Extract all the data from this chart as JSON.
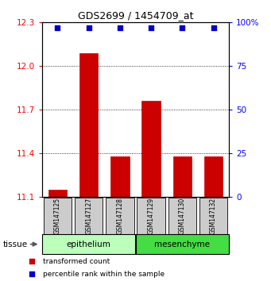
{
  "title": "GDS2699 / 1454709_at",
  "samples": [
    "GSM147125",
    "GSM147127",
    "GSM147128",
    "GSM147129",
    "GSM147130",
    "GSM147132"
  ],
  "bar_values": [
    11.15,
    12.09,
    11.38,
    11.76,
    11.38,
    11.38
  ],
  "bar_bottom": 11.1,
  "bar_color": "#cc0000",
  "percentile_values": [
    97,
    97,
    97,
    97,
    97,
    97
  ],
  "dot_color": "#0000cc",
  "ylim_left": [
    11.1,
    12.3
  ],
  "ylim_right": [
    0,
    100
  ],
  "yticks_left": [
    11.1,
    11.4,
    11.7,
    12.0,
    12.3
  ],
  "yticks_right": [
    0,
    25,
    50,
    75,
    100
  ],
  "ytick_labels_right": [
    "0",
    "25",
    "50",
    "75",
    "100%"
  ],
  "groups": [
    {
      "label": "epithelium",
      "indices": [
        0,
        1,
        2
      ],
      "color": "#bbffbb"
    },
    {
      "label": "mesenchyme",
      "indices": [
        3,
        4,
        5
      ],
      "color": "#44dd44"
    }
  ],
  "tissue_label": "tissue",
  "legend_entries": [
    {
      "label": "transformed count",
      "color": "#cc0000"
    },
    {
      "label": "percentile rank within the sample",
      "color": "#0000cc"
    }
  ],
  "background_color": "#ffffff",
  "bar_width": 0.6,
  "sample_box_color": "#cccccc"
}
